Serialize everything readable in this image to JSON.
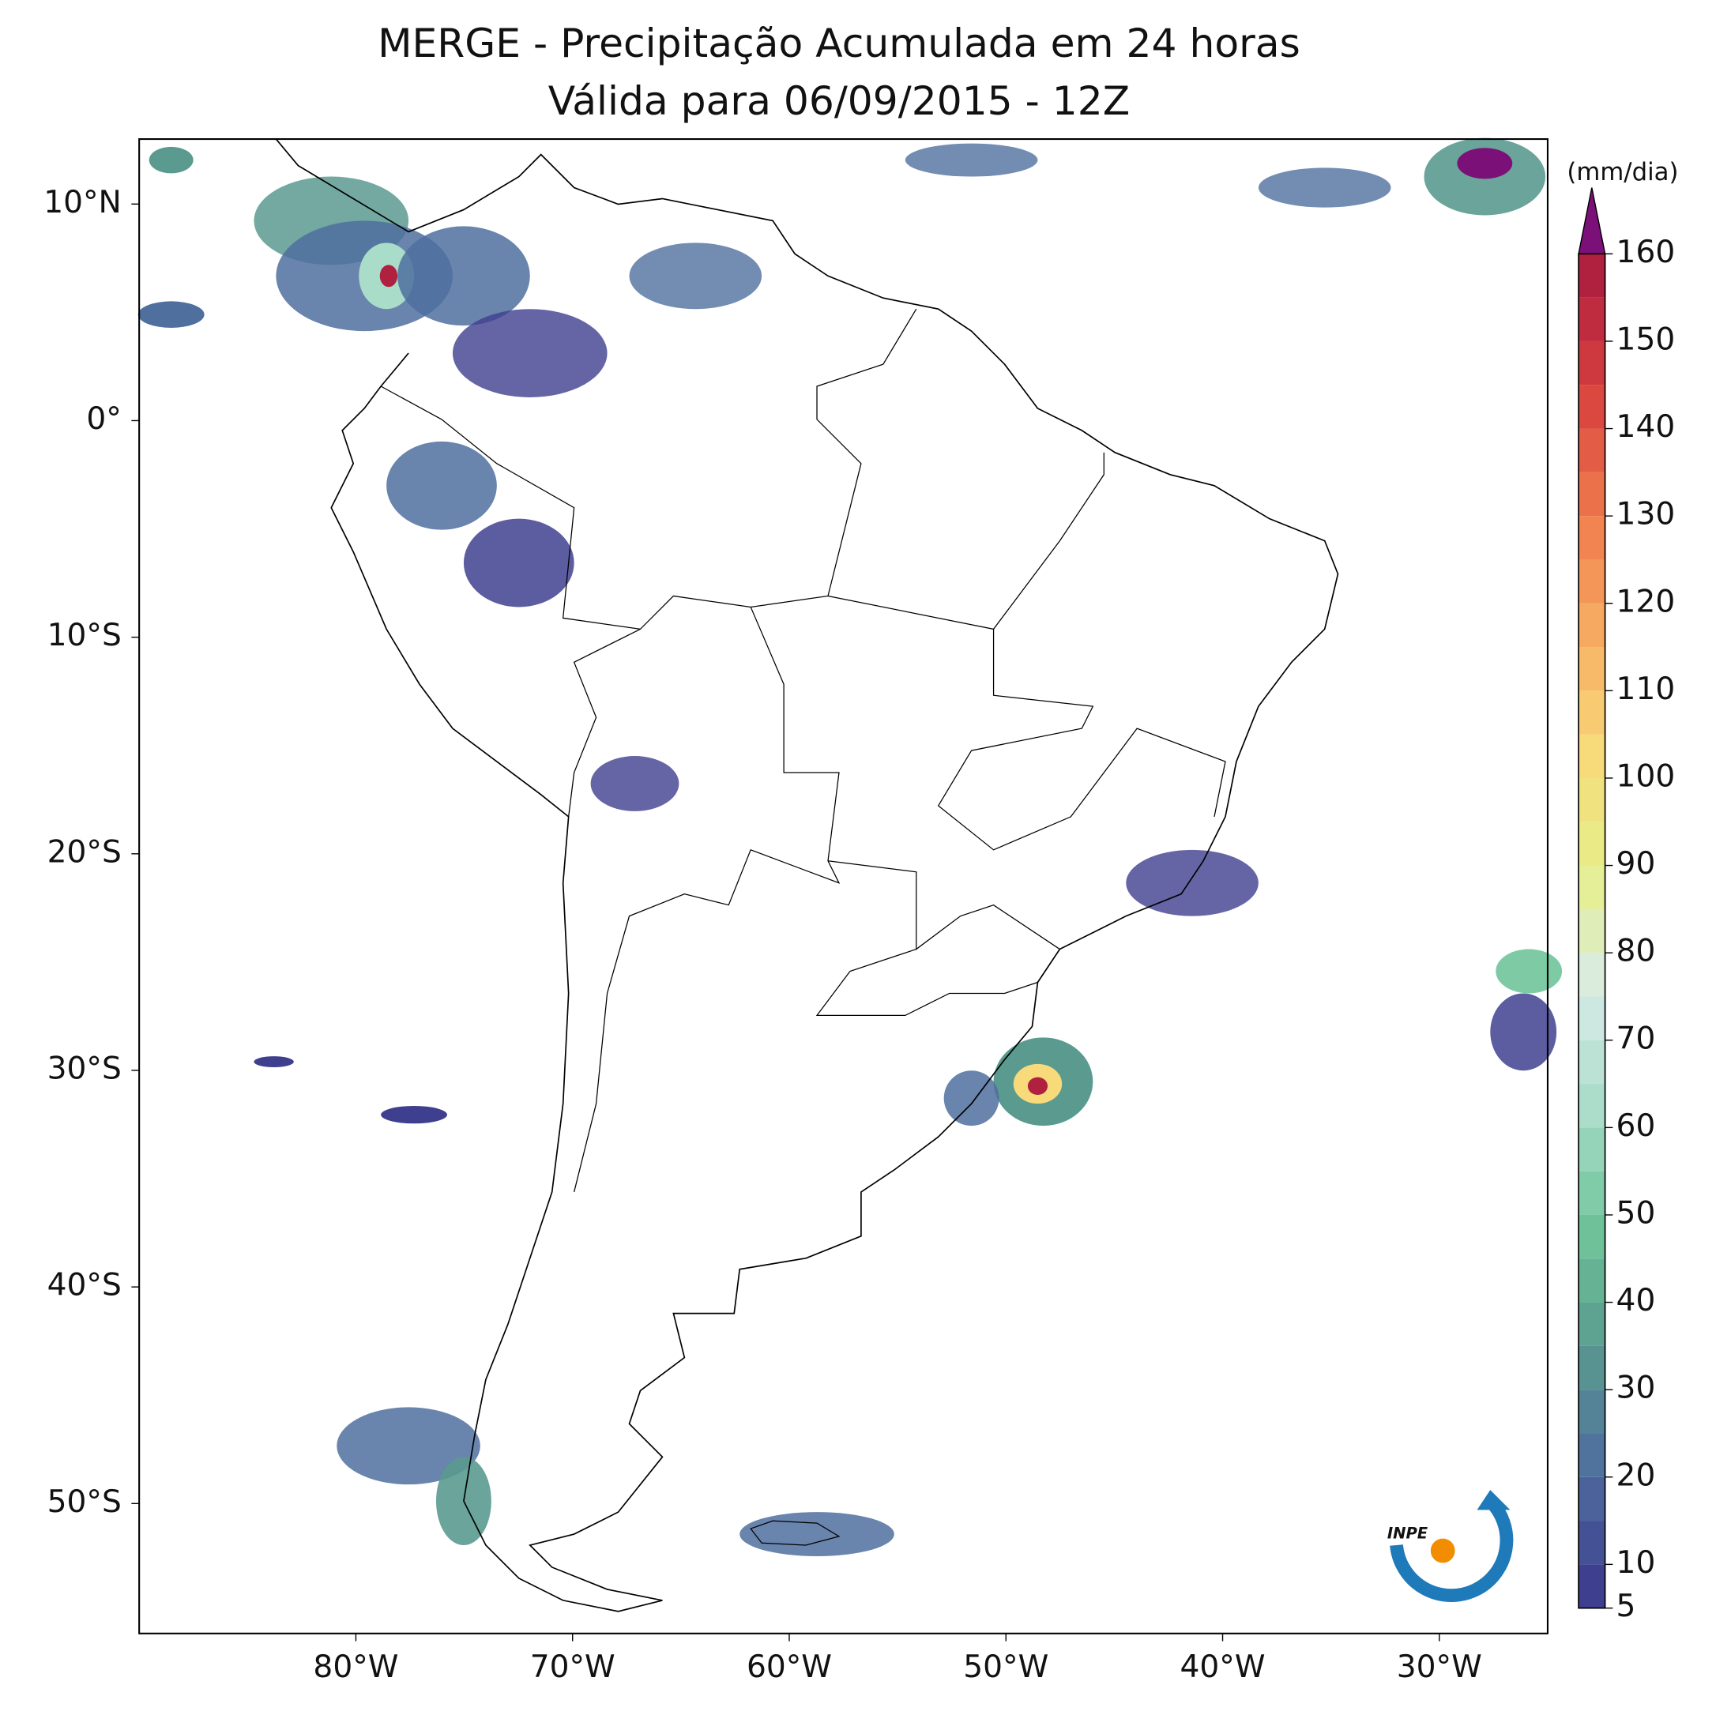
{
  "chart_data": {
    "type": "map",
    "title": "MERGE - Precipitação Acumulada em 24 horas",
    "subtitle": "Válida para 06/09/2015 - 12Z",
    "xlim": [
      -90,
      -25
    ],
    "ylim": [
      -56,
      13
    ],
    "xticks": [
      {
        "value": -80,
        "label": "80°W"
      },
      {
        "value": -70,
        "label": "70°W"
      },
      {
        "value": -60,
        "label": "60°W"
      },
      {
        "value": -50,
        "label": "50°W"
      },
      {
        "value": -40,
        "label": "40°W"
      },
      {
        "value": -30,
        "label": "30°W"
      }
    ],
    "yticks": [
      {
        "value": 10,
        "label": "10°N"
      },
      {
        "value": 0,
        "label": "0°"
      },
      {
        "value": -10,
        "label": "10°S"
      },
      {
        "value": -20,
        "label": "20°S"
      },
      {
        "value": -30,
        "label": "30°S"
      },
      {
        "value": -40,
        "label": "40°S"
      },
      {
        "value": -50,
        "label": "50°S"
      }
    ],
    "colorbar": {
      "label": "(mm/dia)",
      "clim": [
        5,
        160
      ],
      "step": 5,
      "ticks": [
        5,
        10,
        20,
        30,
        40,
        50,
        60,
        70,
        80,
        90,
        100,
        110,
        120,
        130,
        140,
        150,
        160
      ],
      "colors": [
        "#3f3f8f",
        "#4f6f9f",
        "#5a9a8f",
        "#6fc49a",
        "#a9dcc9",
        "#d8ece8",
        "#e6ef8a",
        "#f8da7a",
        "#f7ac62",
        "#ef7a4c",
        "#d8423e",
        "#b0203f"
      ],
      "extend_color": "#7a1078"
    },
    "logo": "INPE"
  }
}
